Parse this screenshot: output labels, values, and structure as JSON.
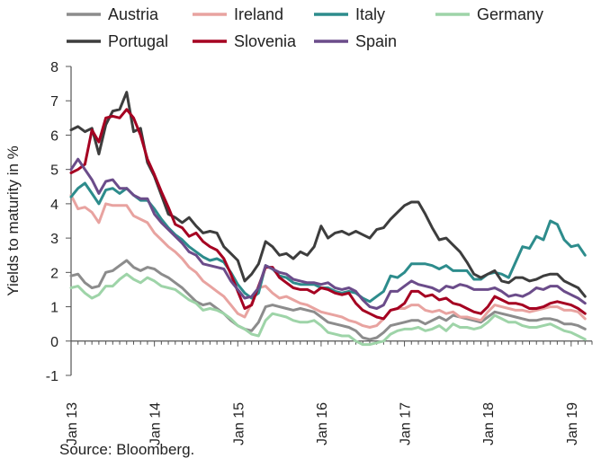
{
  "chart_data": {
    "type": "line",
    "ylabel": "Yields to maturity in %",
    "xlabel": "",
    "ylim": [
      -1,
      8
    ],
    "yticks": [
      -1,
      0,
      1,
      2,
      3,
      4,
      5,
      6,
      7,
      8
    ],
    "xlim": [
      "2013-01",
      "2019-04"
    ],
    "xticks": [
      "Jan 13",
      "Jan 14",
      "Jan 15",
      "Jan 16",
      "Jan 17",
      "Jan 18",
      "Jan 19"
    ],
    "grid": false,
    "legend_position": "top",
    "x": [
      "2013-01",
      "2013-02",
      "2013-03",
      "2013-04",
      "2013-05",
      "2013-06",
      "2013-07",
      "2013-08",
      "2013-09",
      "2013-10",
      "2013-11",
      "2013-12",
      "2014-01",
      "2014-02",
      "2014-03",
      "2014-04",
      "2014-05",
      "2014-06",
      "2014-07",
      "2014-08",
      "2014-09",
      "2014-10",
      "2014-11",
      "2014-12",
      "2015-01",
      "2015-02",
      "2015-03",
      "2015-04",
      "2015-05",
      "2015-06",
      "2015-07",
      "2015-08",
      "2015-09",
      "2015-10",
      "2015-11",
      "2015-12",
      "2016-01",
      "2016-02",
      "2016-03",
      "2016-04",
      "2016-05",
      "2016-06",
      "2016-07",
      "2016-08",
      "2016-09",
      "2016-10",
      "2016-11",
      "2016-12",
      "2017-01",
      "2017-02",
      "2017-03",
      "2017-04",
      "2017-05",
      "2017-06",
      "2017-07",
      "2017-08",
      "2017-09",
      "2017-10",
      "2017-11",
      "2017-12",
      "2018-01",
      "2018-02",
      "2018-03",
      "2018-04",
      "2018-05",
      "2018-06",
      "2018-07",
      "2018-08",
      "2018-09",
      "2018-10",
      "2018-11",
      "2018-12",
      "2019-01",
      "2019-02",
      "2019-03"
    ],
    "series": [
      {
        "name": "Austria",
        "color": "#8c8c8c",
        "values": [
          1.9,
          1.95,
          1.7,
          1.55,
          1.6,
          2.0,
          2.05,
          2.2,
          2.35,
          2.15,
          2.05,
          2.15,
          2.1,
          1.95,
          1.85,
          1.7,
          1.55,
          1.35,
          1.15,
          1.05,
          1.1,
          0.95,
          0.8,
          0.6,
          0.45,
          0.35,
          0.3,
          0.55,
          1.0,
          1.05,
          1.0,
          0.95,
          0.9,
          0.95,
          0.9,
          0.85,
          0.7,
          0.55,
          0.5,
          0.45,
          0.4,
          0.3,
          0.1,
          0.05,
          0.1,
          0.25,
          0.45,
          0.5,
          0.55,
          0.6,
          0.6,
          0.5,
          0.6,
          0.7,
          0.6,
          0.75,
          0.7,
          0.65,
          0.6,
          0.55,
          0.7,
          0.85,
          0.8,
          0.75,
          0.7,
          0.65,
          0.6,
          0.6,
          0.65,
          0.65,
          0.6,
          0.5,
          0.5,
          0.45,
          0.35
        ]
      },
      {
        "name": "Ireland",
        "color": "#e8a3a0",
        "values": [
          4.25,
          3.85,
          3.9,
          3.75,
          3.45,
          4.0,
          3.95,
          3.95,
          3.95,
          3.65,
          3.55,
          3.45,
          3.15,
          2.95,
          2.75,
          2.6,
          2.4,
          2.15,
          2.0,
          1.75,
          1.6,
          1.45,
          1.3,
          1.05,
          0.8,
          0.7,
          1.1,
          1.55,
          1.6,
          1.4,
          1.25,
          1.3,
          1.2,
          1.1,
          1.05,
          0.95,
          0.85,
          0.8,
          0.75,
          0.7,
          0.6,
          0.55,
          0.45,
          0.4,
          0.45,
          0.65,
          0.9,
          0.95,
          0.95,
          1.05,
          1.05,
          0.9,
          0.85,
          0.9,
          0.8,
          0.85,
          0.7,
          0.7,
          0.65,
          0.6,
          0.85,
          1.05,
          1.0,
          0.95,
          0.9,
          0.9,
          0.85,
          0.9,
          0.95,
          1.0,
          1.0,
          0.9,
          0.9,
          0.85,
          0.65
        ]
      },
      {
        "name": "Italy",
        "color": "#2d8c8c",
        "values": [
          4.2,
          4.45,
          4.6,
          4.3,
          4.0,
          4.4,
          4.45,
          4.3,
          4.45,
          4.25,
          4.1,
          4.1,
          3.85,
          3.55,
          3.3,
          3.1,
          2.95,
          2.75,
          2.6,
          2.45,
          2.35,
          2.4,
          2.3,
          2.0,
          1.65,
          1.4,
          1.25,
          1.4,
          2.2,
          2.1,
          1.9,
          1.85,
          1.7,
          1.65,
          1.65,
          1.65,
          1.55,
          1.55,
          1.45,
          1.4,
          1.45,
          1.4,
          1.25,
          1.15,
          1.3,
          1.45,
          1.9,
          1.85,
          2.0,
          2.25,
          2.25,
          2.25,
          2.2,
          2.1,
          2.2,
          2.05,
          2.05,
          2.05,
          1.8,
          1.8,
          1.95,
          2.0,
          1.95,
          1.85,
          2.3,
          2.75,
          2.7,
          3.05,
          2.95,
          3.5,
          3.4,
          2.95,
          2.75,
          2.8,
          2.5
        ]
      },
      {
        "name": "Germany",
        "color": "#9ed4a8",
        "values": [
          1.55,
          1.6,
          1.4,
          1.25,
          1.35,
          1.6,
          1.6,
          1.8,
          1.95,
          1.8,
          1.7,
          1.85,
          1.75,
          1.6,
          1.55,
          1.5,
          1.35,
          1.2,
          1.1,
          0.9,
          0.95,
          0.9,
          0.8,
          0.65,
          0.45,
          0.35,
          0.2,
          0.15,
          0.6,
          0.8,
          0.75,
          0.7,
          0.6,
          0.55,
          0.55,
          0.6,
          0.45,
          0.25,
          0.2,
          0.15,
          0.15,
          0.0,
          -0.1,
          -0.1,
          -0.05,
          0.0,
          0.2,
          0.3,
          0.35,
          0.35,
          0.4,
          0.3,
          0.35,
          0.45,
          0.3,
          0.5,
          0.4,
          0.4,
          0.35,
          0.4,
          0.55,
          0.75,
          0.65,
          0.55,
          0.55,
          0.45,
          0.4,
          0.4,
          0.45,
          0.5,
          0.4,
          0.3,
          0.25,
          0.15,
          0.05
        ]
      },
      {
        "name": "Portugal",
        "color": "#3d3d3d",
        "values": [
          6.15,
          6.25,
          6.1,
          6.2,
          5.45,
          6.3,
          6.7,
          6.75,
          7.25,
          6.1,
          6.2,
          5.2,
          4.8,
          4.25,
          3.7,
          3.6,
          3.45,
          3.6,
          3.35,
          3.15,
          3.2,
          3.15,
          2.75,
          2.55,
          2.35,
          1.75,
          1.95,
          2.25,
          2.9,
          2.75,
          2.5,
          2.55,
          2.4,
          2.6,
          2.5,
          2.75,
          3.35,
          3.0,
          3.15,
          3.2,
          3.1,
          3.2,
          3.1,
          3.0,
          3.25,
          3.3,
          3.55,
          3.75,
          3.95,
          4.05,
          4.05,
          3.7,
          3.3,
          2.95,
          3.0,
          2.8,
          2.6,
          2.3,
          1.95,
          1.85,
          1.95,
          2.05,
          1.75,
          1.7,
          1.85,
          1.85,
          1.75,
          1.8,
          1.9,
          1.95,
          1.95,
          1.75,
          1.65,
          1.55,
          1.3
        ]
      },
      {
        "name": "Slovenia",
        "color": "#a50021",
        "values": [
          4.9,
          5.0,
          5.15,
          6.15,
          5.8,
          6.5,
          6.55,
          6.5,
          6.75,
          6.5,
          6.0,
          5.3,
          4.85,
          4.35,
          3.9,
          3.4,
          3.3,
          3.05,
          3.15,
          2.9,
          2.75,
          2.65,
          2.4,
          1.95,
          1.45,
          0.95,
          1.05,
          1.6,
          2.15,
          2.15,
          1.85,
          1.7,
          1.55,
          1.5,
          1.5,
          1.4,
          1.55,
          1.5,
          1.4,
          1.35,
          1.4,
          1.1,
          0.9,
          0.8,
          0.7,
          0.65,
          0.9,
          0.95,
          1.1,
          1.45,
          1.45,
          1.3,
          1.35,
          1.2,
          1.25,
          1.1,
          1.05,
          0.95,
          0.85,
          0.8,
          1.0,
          1.3,
          1.2,
          1.1,
          1.1,
          1.05,
          0.95,
          0.95,
          1.0,
          1.1,
          1.15,
          1.1,
          1.05,
          0.95,
          0.8
        ]
      },
      {
        "name": "Spain",
        "color": "#6b4c8a",
        "values": [
          5.0,
          5.3,
          5.0,
          4.7,
          4.3,
          4.65,
          4.7,
          4.45,
          4.45,
          4.25,
          4.15,
          4.15,
          3.7,
          3.45,
          3.25,
          3.05,
          2.85,
          2.6,
          2.5,
          2.25,
          2.2,
          2.15,
          2.1,
          1.75,
          1.5,
          1.25,
          1.3,
          1.55,
          2.2,
          2.1,
          2.0,
          1.95,
          1.8,
          1.75,
          1.7,
          1.7,
          1.65,
          1.7,
          1.55,
          1.5,
          1.55,
          1.45,
          1.2,
          1.0,
          0.95,
          1.05,
          1.45,
          1.45,
          1.6,
          1.75,
          1.65,
          1.6,
          1.55,
          1.45,
          1.6,
          1.55,
          1.65,
          1.6,
          1.5,
          1.5,
          1.5,
          1.55,
          1.45,
          1.3,
          1.35,
          1.3,
          1.4,
          1.55,
          1.5,
          1.6,
          1.6,
          1.45,
          1.35,
          1.25,
          1.1
        ]
      }
    ]
  },
  "legend": {
    "rows": [
      [
        "Austria",
        "Ireland",
        "Italy",
        "Germany"
      ],
      [
        "Portugal",
        "Slovenia",
        "Spain"
      ]
    ]
  },
  "source_note": "Source: Bloomberg."
}
